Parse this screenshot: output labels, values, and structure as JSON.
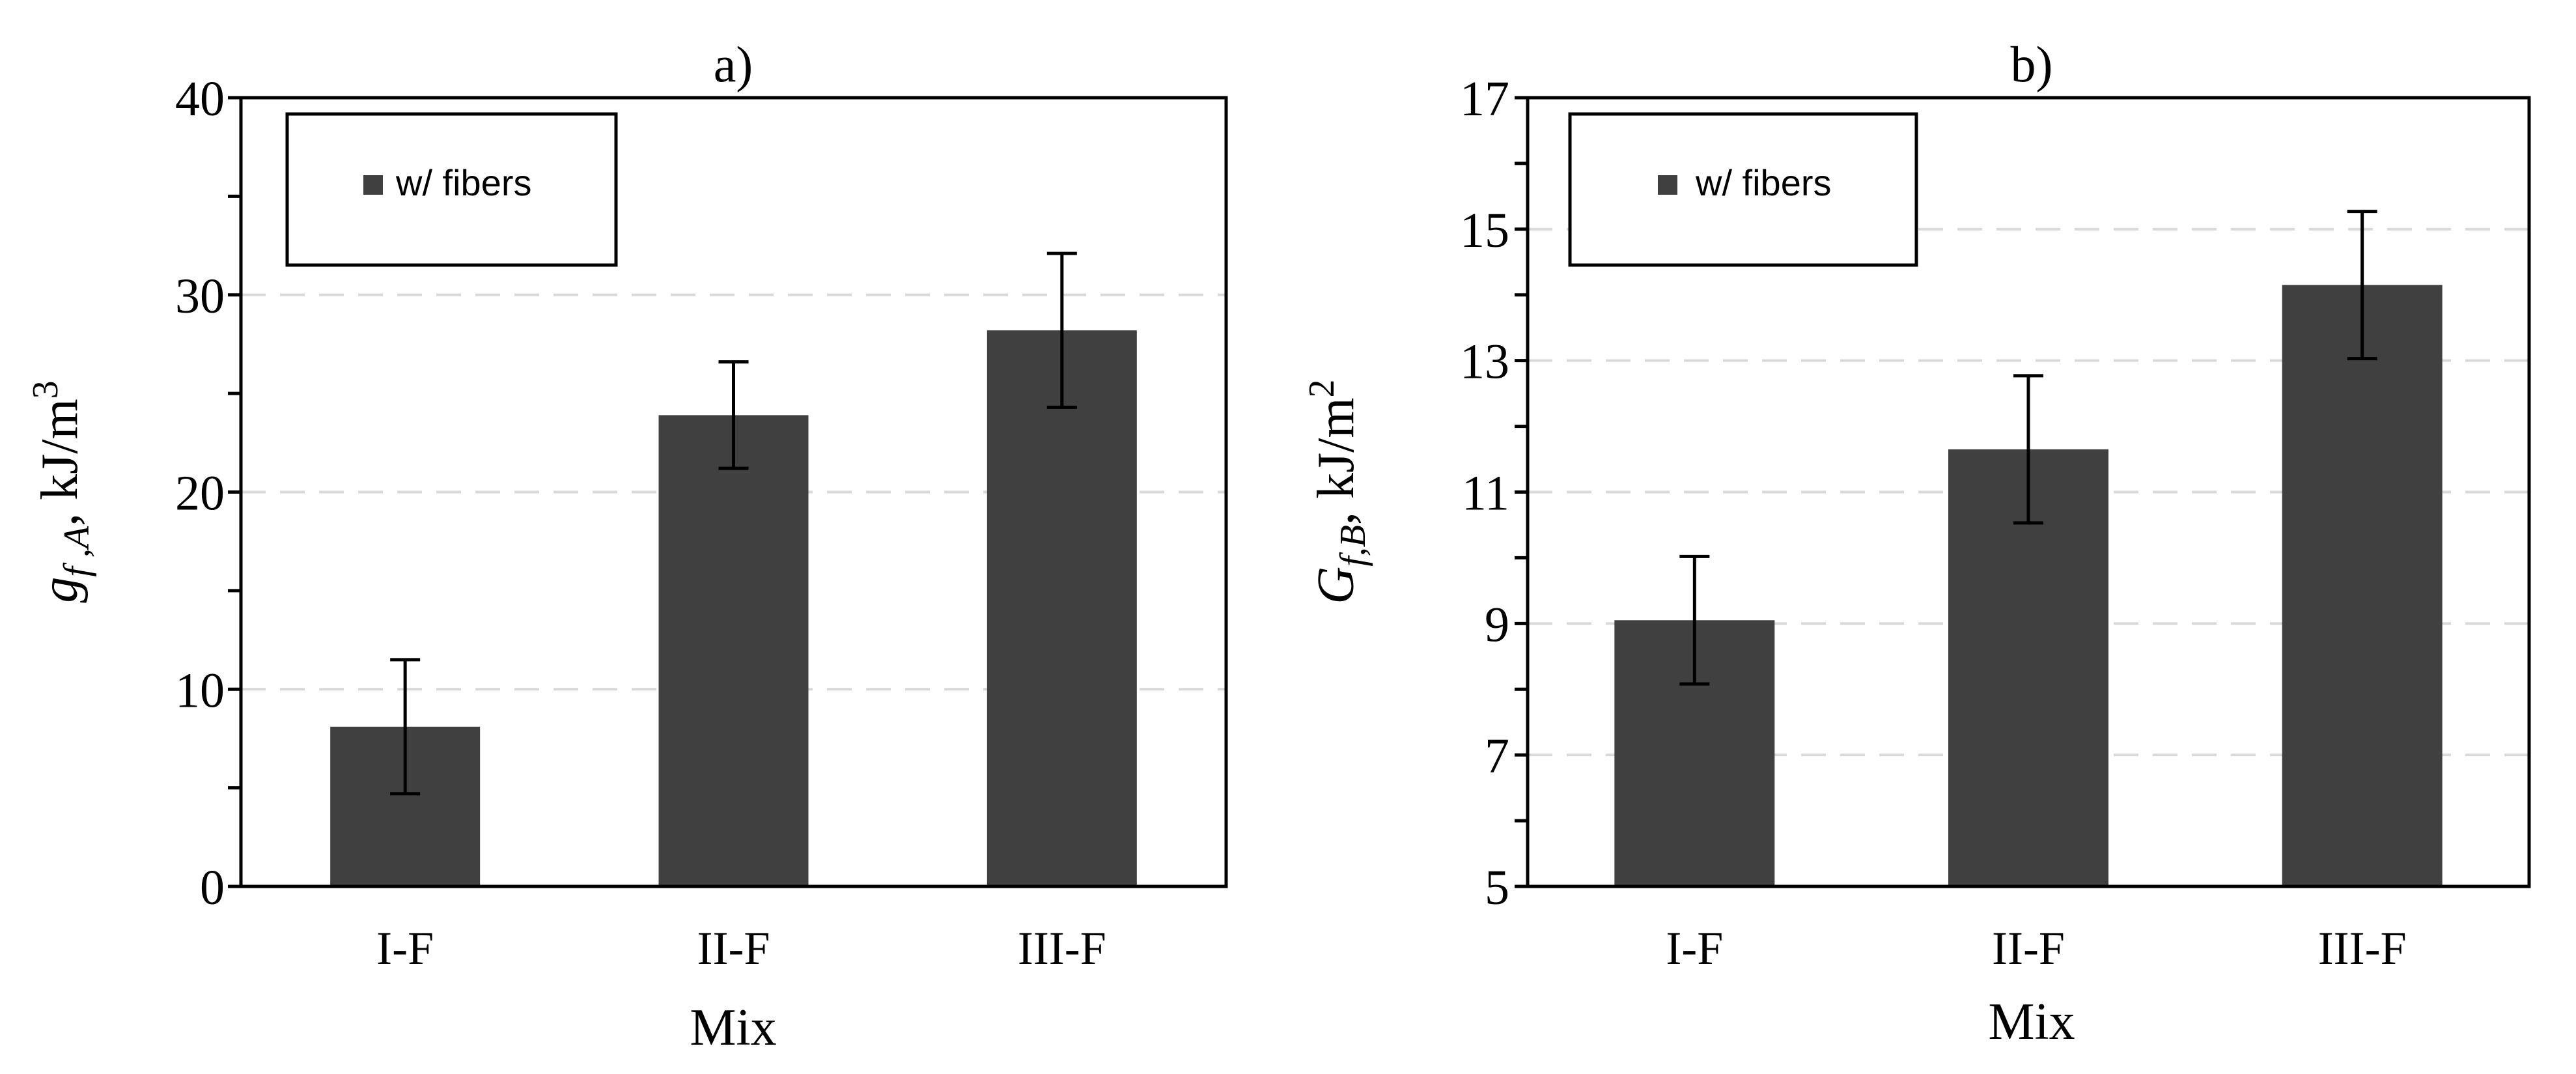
{
  "colors": {
    "bar": "#404040",
    "grid": "#d9d9d9",
    "axis": "#000000"
  },
  "chart_data": [
    {
      "type": "bar",
      "panel": "a)",
      "title": "a)",
      "categories": [
        "I-F",
        "II-F",
        "III-F"
      ],
      "values": [
        8.1,
        23.9,
        28.2
      ],
      "error": [
        3.4,
        2.7,
        3.9
      ],
      "series_name": "w/ fibers",
      "xlabel": "Mix",
      "ylabel_main": "g",
      "ylabel_sub": "f ,A",
      "ylabel_unit": ", kJ/m",
      "ylabel_exp": "3",
      "ylim": [
        0,
        40
      ],
      "major_ticks": [
        0,
        10,
        20,
        30,
        40
      ],
      "tick_labels": [
        "0",
        "10",
        "20",
        "30",
        "40"
      ],
      "minor_ticks": [
        5,
        15,
        25,
        35
      ],
      "grid_values": [
        10,
        20,
        30
      ],
      "legend_position": "top-left"
    },
    {
      "type": "bar",
      "panel": "b)",
      "title": "b)",
      "categories": [
        "I-F",
        "II-F",
        "III-F"
      ],
      "values": [
        9.05,
        11.65,
        14.15
      ],
      "error": [
        0.97,
        1.12,
        1.12
      ],
      "series_name": "w/ fibers",
      "xlabel": "Mix",
      "ylabel_main": "G",
      "ylabel_sub": "f,B",
      "ylabel_unit": ", kJ/m",
      "ylabel_exp": "2",
      "ylim": [
        5,
        17
      ],
      "major_ticks": [
        5,
        7,
        9,
        11,
        13,
        15,
        17
      ],
      "tick_labels": [
        "5",
        "7",
        "9",
        "11",
        "13",
        "15",
        "17"
      ],
      "minor_ticks": [
        6,
        8,
        10,
        12,
        14,
        16
      ],
      "grid_values": [
        7,
        9,
        11,
        13,
        15
      ],
      "legend_position": "top-left"
    }
  ]
}
